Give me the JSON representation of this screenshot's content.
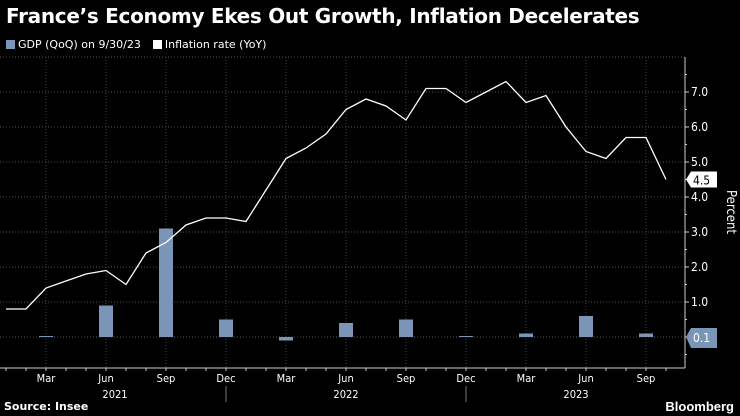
{
  "title": "France’s Economy Ekes Out Growth, Inflation Decelerates",
  "source": "Source: Insee",
  "brand": "Bloomberg",
  "colors": {
    "gdp": "#7b95b8",
    "inflation": "#ffffff",
    "background": "#000000"
  },
  "chart_data": {
    "type": "bar+line",
    "legend": [
      {
        "name": "GDP (QoQ) on 9/30/23",
        "color": "#7b95b8"
      },
      {
        "name": "Inflation rate (YoY)",
        "color": "#ffffff"
      }
    ],
    "ylabel": "Percent",
    "ylim": [
      -0.9,
      8.0
    ],
    "yticks": [
      1.0,
      2.0,
      3.0,
      4.0,
      5.0,
      6.0,
      7.0
    ],
    "grid": true,
    "legend_placement": "top-left",
    "x_tick_labels": [
      "Mar",
      "Jun",
      "Sep",
      "Dec",
      "Mar",
      "Jun",
      "Sep",
      "Dec",
      "Mar",
      "Jun",
      "Sep"
    ],
    "year_labels": [
      "2021",
      "2022",
      "2023"
    ],
    "gdp": {
      "name": "GDP (QoQ) on 9/30/23",
      "x": [
        "2021-03",
        "2021-06",
        "2021-09",
        "2021-12",
        "2022-03",
        "2022-06",
        "2022-09",
        "2022-12",
        "2023-03",
        "2023-06",
        "2023-09"
      ],
      "values": [
        0.0,
        0.9,
        3.1,
        0.5,
        -0.1,
        0.4,
        0.5,
        0.0,
        0.1,
        0.6,
        0.1
      ],
      "last_label": "0.1"
    },
    "inflation": {
      "name": "Inflation rate (YoY)",
      "x_start": "2021-01",
      "x_end": "2023-10",
      "values": [
        0.8,
        0.8,
        1.4,
        1.6,
        1.8,
        1.9,
        1.5,
        2.4,
        2.7,
        3.2,
        3.4,
        3.4,
        3.3,
        4.2,
        5.1,
        5.4,
        5.8,
        6.5,
        6.8,
        6.6,
        6.2,
        7.1,
        7.1,
        6.7,
        7.0,
        7.3,
        6.7,
        6.9,
        6.0,
        5.3,
        5.1,
        5.7,
        5.7,
        4.5
      ],
      "last_label": "4.5"
    }
  }
}
